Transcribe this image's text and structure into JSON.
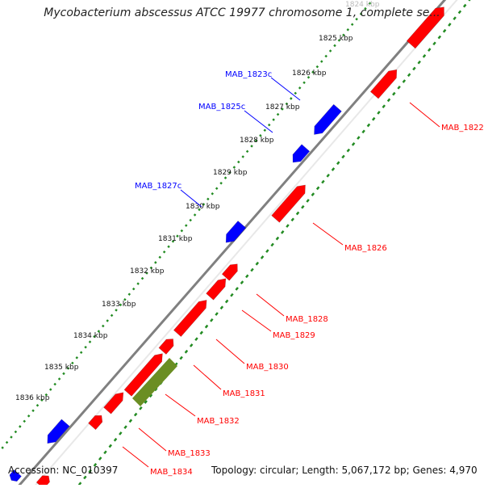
{
  "title": "Mycobacterium abscessus ATCC 19977 chromosome 1, complete se...",
  "accession_label": "Accession: NC_010397",
  "topology_label": "Topology: circular; Length: 5,067,172 bp; Genes: 4,970",
  "colors": {
    "forward_gene": "#ff0000",
    "reverse_gene": "#0000ff",
    "other_feature": "#6b8e23",
    "backbone": "#808080",
    "tick_dots": "#228b22"
  },
  "kbp_labels": [
    "1824 kbp",
    "1825 kbp",
    "1826 kbp",
    "1827 kbp",
    "1828 kbp",
    "1829 kbp",
    "1830 kbp",
    "1831 kbp",
    "1832 kbp",
    "1833 kbp",
    "1834 kbp",
    "1835 kbp",
    "1836 kbp"
  ],
  "genes_forward": [
    "MAB_1822",
    "MAB_1826",
    "MAB_1828",
    "MAB_1829",
    "MAB_1830",
    "MAB_1831",
    "MAB_1832",
    "MAB_1833",
    "MAB_1834"
  ],
  "genes_reverse": [
    "MAB_1823c",
    "MAB_1825c",
    "MAB_1827c"
  ]
}
